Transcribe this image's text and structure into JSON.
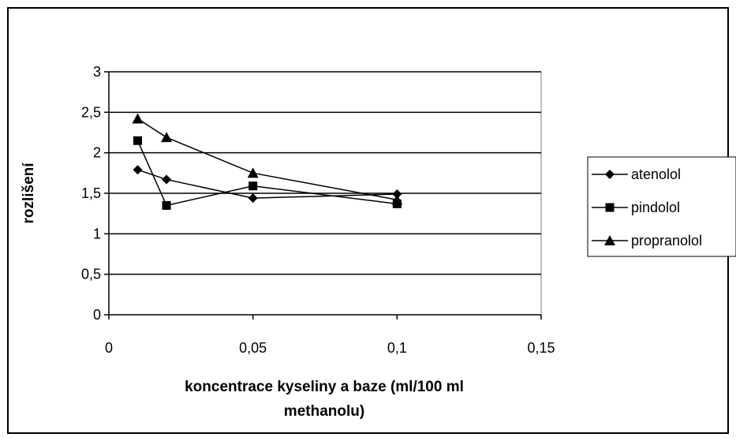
{
  "chart_data": {
    "type": "scatter",
    "title": "",
    "xlabel_lines": [
      "koncentrace kyseliny a baze (ml/100 ml",
      "methanolu)"
    ],
    "ylabel": "rozlišení",
    "xlim": [
      0,
      0.15
    ],
    "ylim": [
      0,
      3
    ],
    "x_ticks": [
      0,
      0.05,
      0.1,
      0.15
    ],
    "x_tick_labels": [
      "0",
      "0,05",
      "0,1",
      "0,15"
    ],
    "y_ticks": [
      0,
      0.5,
      1,
      1.5,
      2,
      2.5,
      3
    ],
    "y_tick_labels": [
      "0",
      "0,5",
      "1",
      "1,5",
      "2",
      "2,5",
      "3"
    ],
    "grid": "horizontal",
    "legend_position": "right",
    "series": [
      {
        "name": "atenolol",
        "marker": "diamond",
        "x": [
          0.01,
          0.02,
          0.05,
          0.1
        ],
        "y": [
          1.79,
          1.67,
          1.44,
          1.49
        ]
      },
      {
        "name": "pindolol",
        "marker": "square",
        "x": [
          0.01,
          0.02,
          0.05,
          0.1
        ],
        "y": [
          2.15,
          1.35,
          1.59,
          1.37
        ]
      },
      {
        "name": "propranolol",
        "marker": "triangle",
        "x": [
          0.01,
          0.02,
          0.05,
          0.1
        ],
        "y": [
          2.42,
          2.19,
          1.75,
          1.42
        ]
      }
    ]
  }
}
